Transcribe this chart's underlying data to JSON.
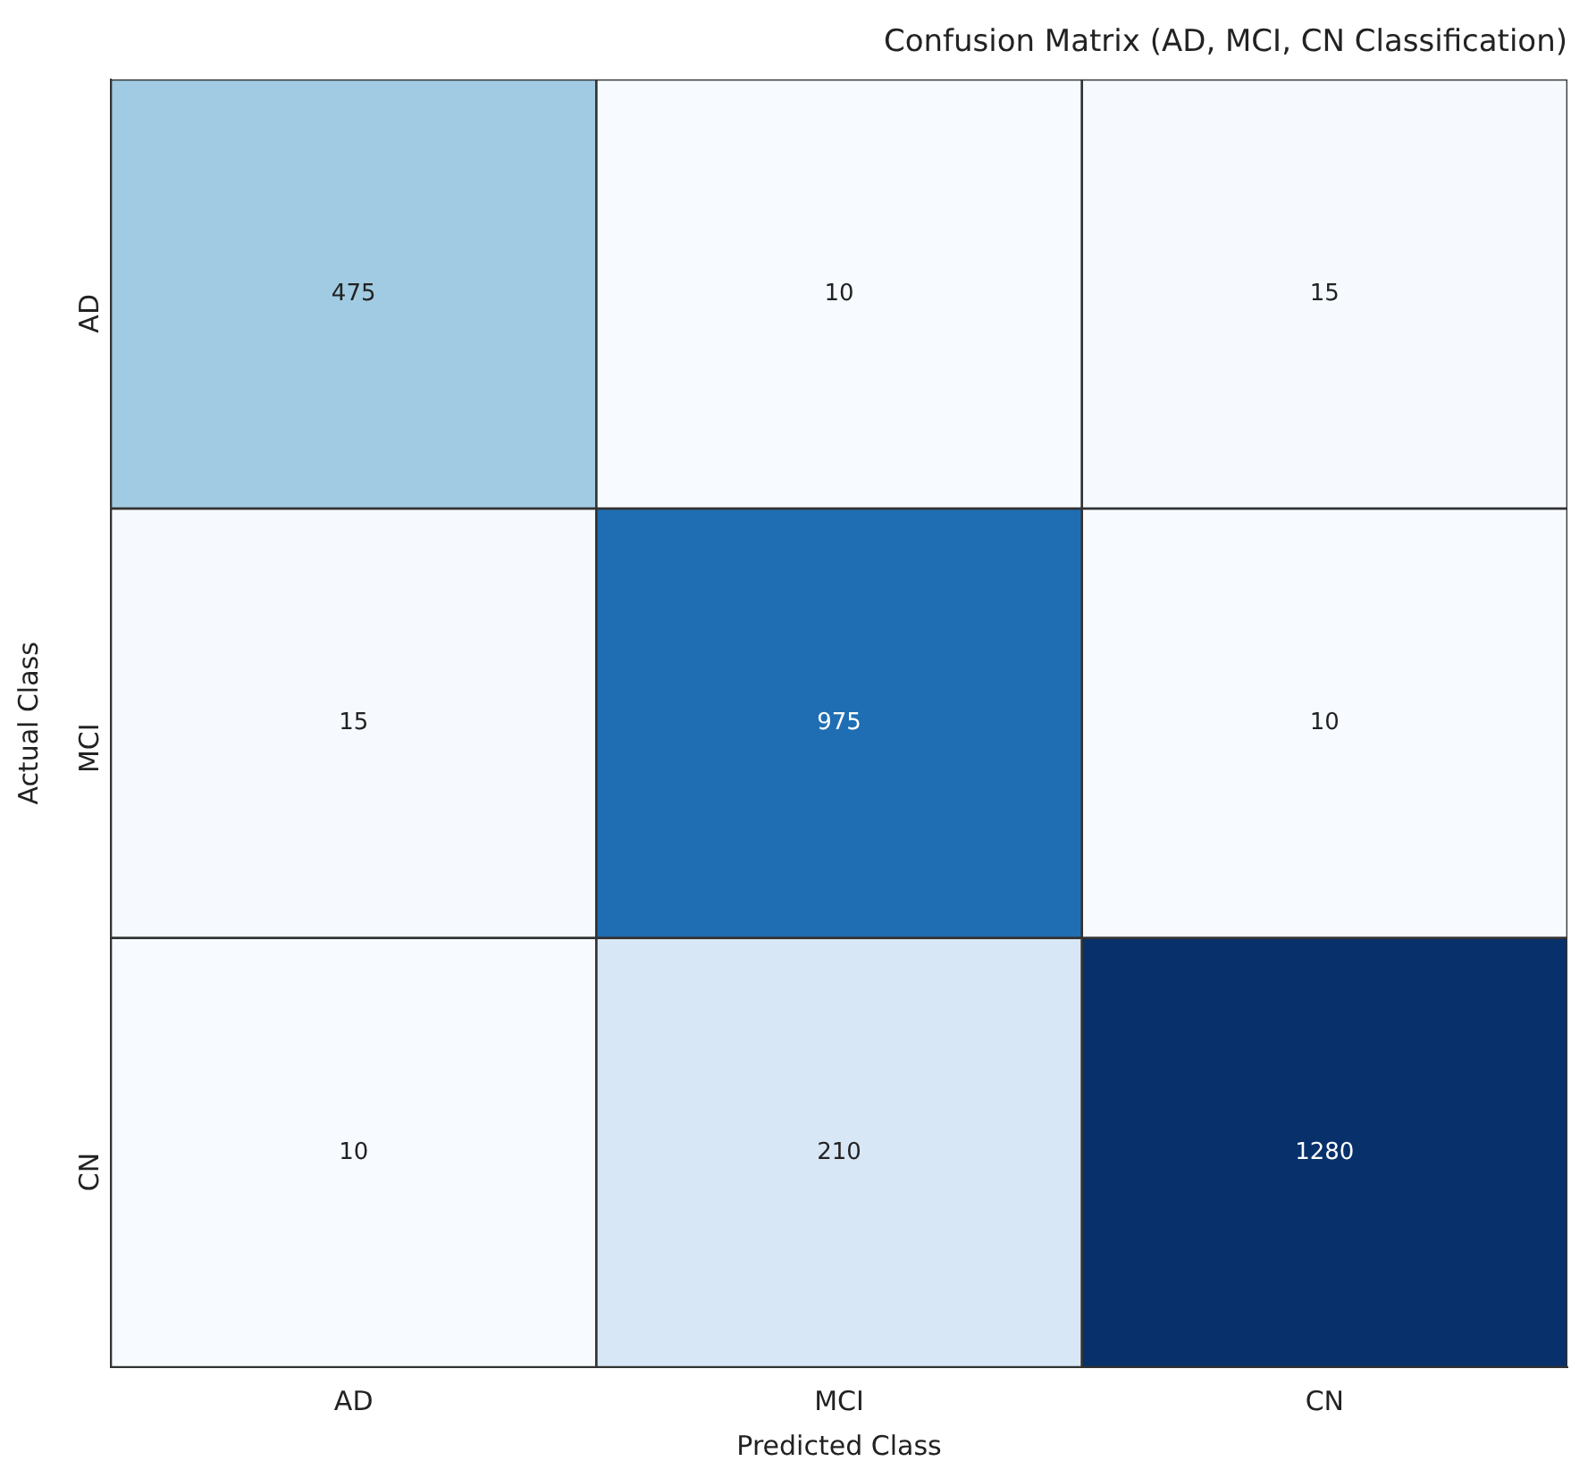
{
  "chart_data": {
    "type": "heatmap",
    "title": "Confusion Matrix (AD, MCI, CN Classification)",
    "xlabel": "Predicted Class",
    "ylabel": "Actual Class",
    "categories": [
      "AD",
      "MCI",
      "CN"
    ],
    "y_categories": [
      "AD",
      "MCI",
      "CN"
    ],
    "cells": [
      [
        475,
        10,
        15
      ],
      [
        15,
        975,
        10
      ],
      [
        10,
        210,
        1280
      ]
    ],
    "data_labels": true,
    "grid": false,
    "legend": false
  }
}
